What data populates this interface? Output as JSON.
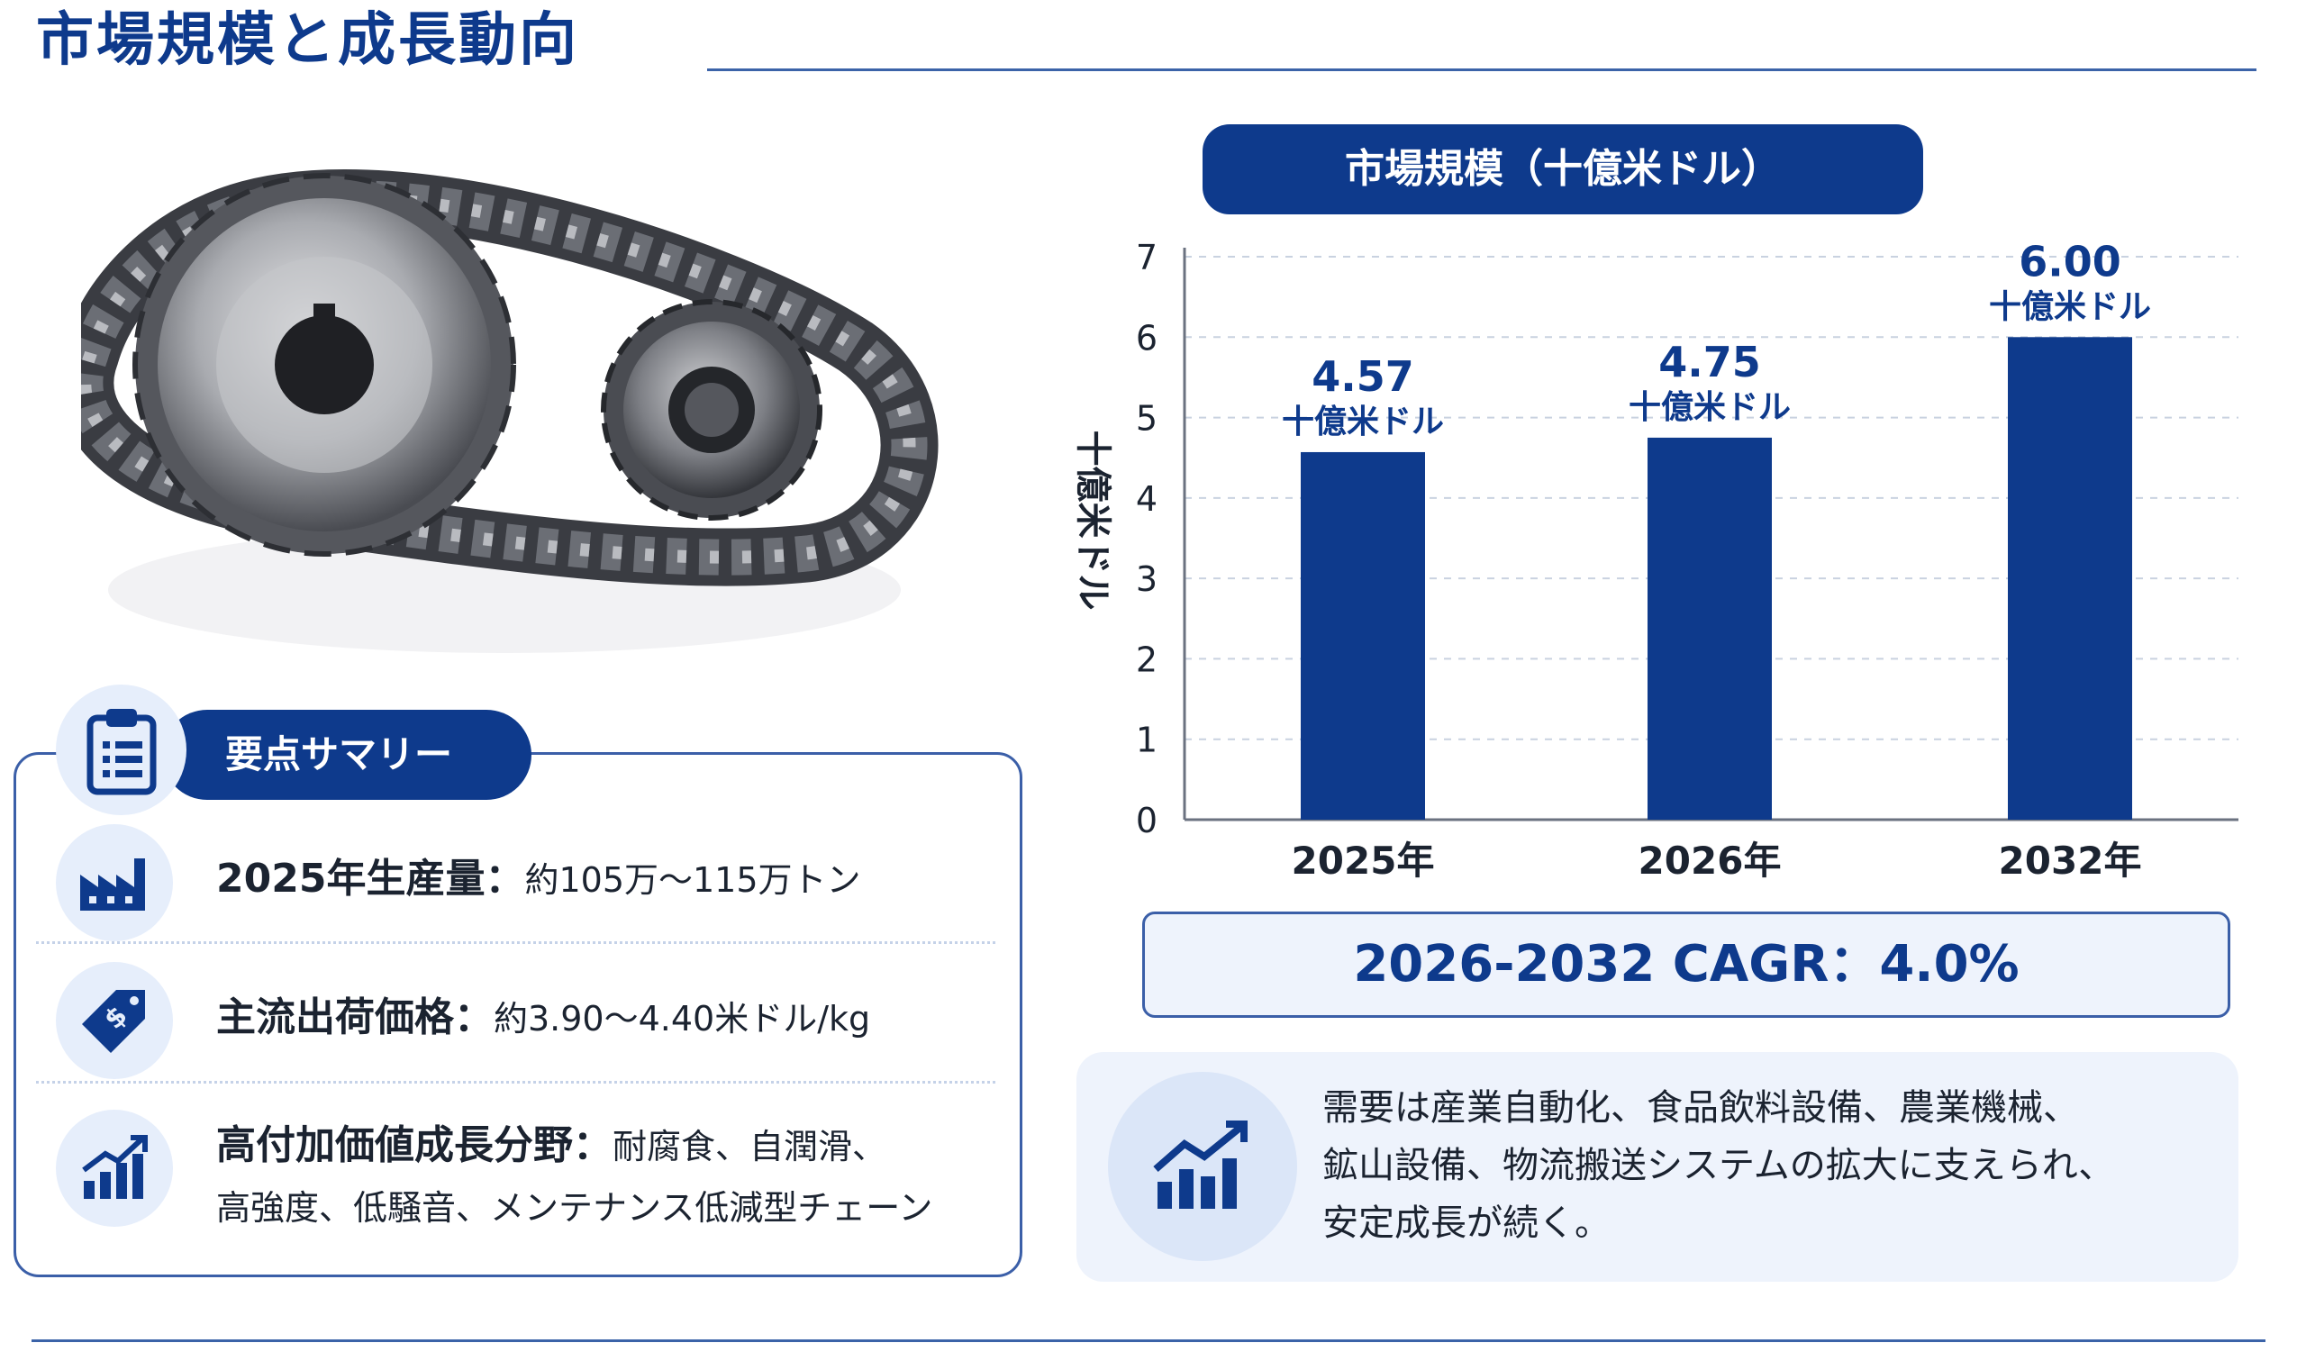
{
  "title": "市場規模と成長動向",
  "summary": {
    "heading": "要点サマリー",
    "items": [
      {
        "label": "2025年生産量：",
        "value": "約105万～115万トン"
      },
      {
        "label": "主流出荷価格：",
        "value": "約3.90～4.40米ドル/kg"
      },
      {
        "label": "高付加価値成長分野：",
        "value": "耐腐食、自潤滑、",
        "value2": "高強度、低騒音、メンテナンス低減型チェーン"
      }
    ]
  },
  "chart_data": {
    "type": "bar",
    "title": "市場規模（十億米ドル）",
    "ylabel": "十億米ドル",
    "categories": [
      "2025年",
      "2026年",
      "2032年"
    ],
    "values": [
      4.57,
      4.75,
      6.0
    ],
    "value_labels": [
      "4.57",
      "4.75",
      "6.00"
    ],
    "unit_label": "十億米ドル",
    "ylim": [
      0,
      7
    ],
    "yticks": [
      "0",
      "1",
      "2",
      "3",
      "4",
      "5",
      "6",
      "7"
    ],
    "grid": true,
    "bar_color": "#0e3a8c"
  },
  "cagr": "2026-2032 CAGR：4.0%",
  "demand": {
    "lines": [
      "需要は産業自動化、食品飲料設備、農業機械、",
      "鉱山設備、物流搬送システムの拡大に支えられ、",
      "安定成長が続く。"
    ]
  },
  "icons": {
    "summary": "clipboard-icon",
    "production": "factory-icon",
    "price": "price-tag-icon",
    "growth": "growth-chart-icon",
    "demand": "trend-up-icon"
  },
  "colors": {
    "accent": "#0e3a8c",
    "panel": "#eef3fc",
    "border": "#3b5fa8"
  }
}
